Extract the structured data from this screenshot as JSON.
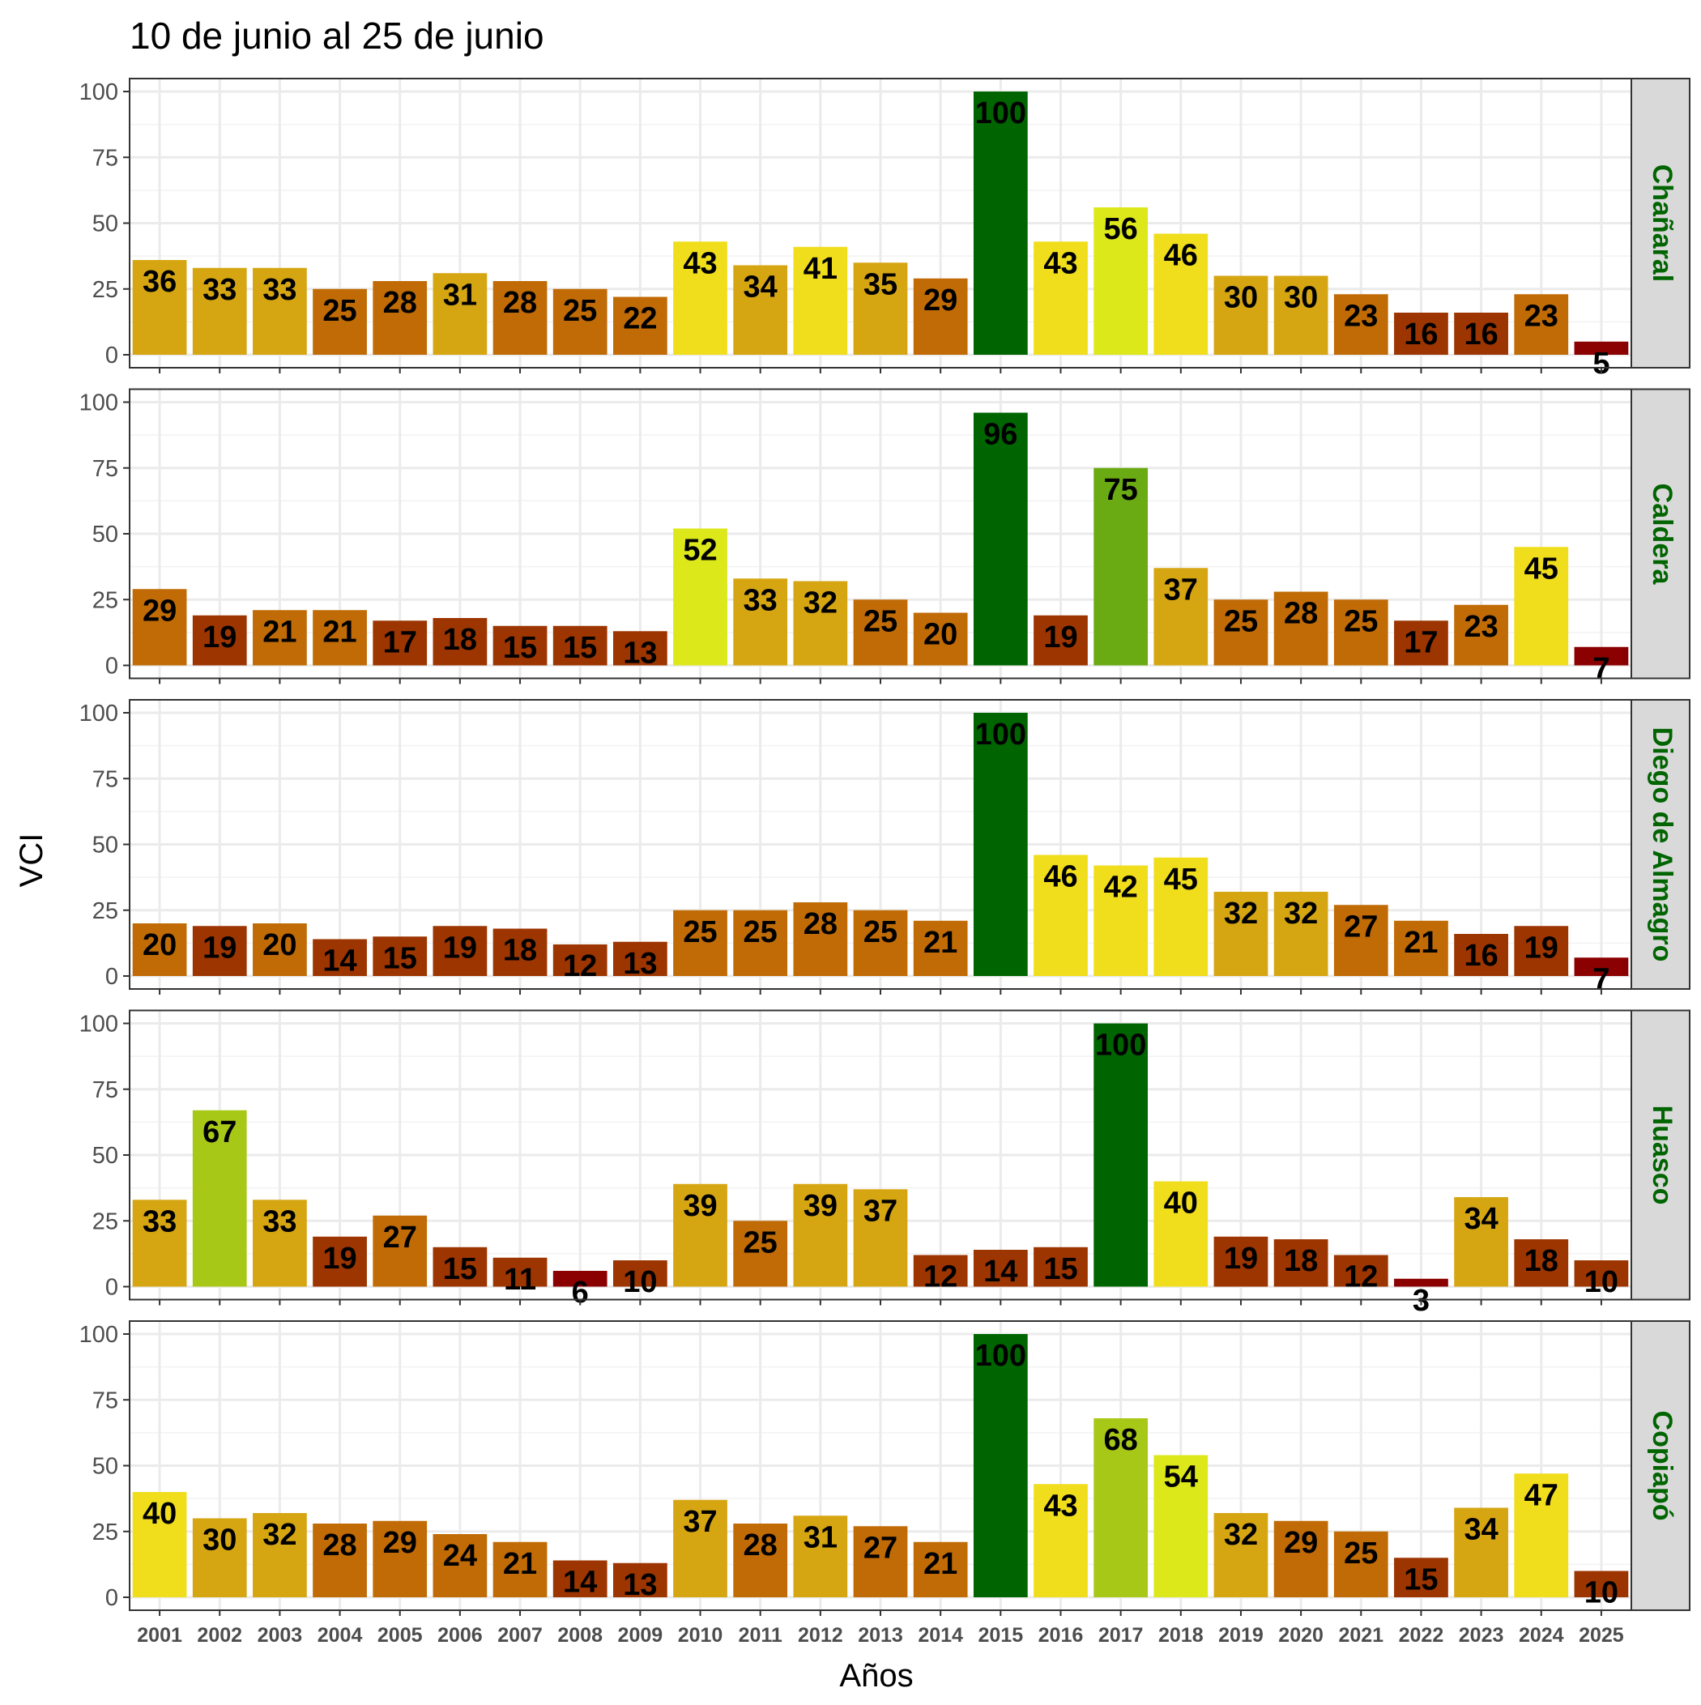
{
  "chart_data": {
    "type": "bar",
    "title": "10 de junio al 25 de junio",
    "xlabel": "Años",
    "ylabel": "VCI",
    "ylim": [
      0,
      100
    ],
    "yticks": [
      0,
      25,
      50,
      75,
      100
    ],
    "grid": true,
    "legend": "none",
    "categories": [
      "2001",
      "2002",
      "2003",
      "2004",
      "2005",
      "2006",
      "2007",
      "2008",
      "2009",
      "2010",
      "2011",
      "2012",
      "2013",
      "2014",
      "2015",
      "2016",
      "2017",
      "2018",
      "2019",
      "2020",
      "2021",
      "2022",
      "2023",
      "2024",
      "2025"
    ],
    "colors": {
      "lt10": "#8b0000",
      "10_20": "#9c3500",
      "20_30": "#c06b05",
      "30_40": "#d6a612",
      "40_50": "#f0de1c",
      "50_60": "#dde81a",
      "60_70": "#a8c818",
      "70_80": "#6aaa12",
      "80_100": "#006400",
      "strip_fill": "#d9d9d9",
      "strip_text": "#006400"
    },
    "series": [
      {
        "name": "Chañaral",
        "values": [
          36,
          33,
          33,
          25,
          28,
          31,
          28,
          25,
          22,
          43,
          34,
          41,
          35,
          29,
          100,
          43,
          56,
          46,
          30,
          30,
          23,
          16,
          16,
          23,
          5
        ]
      },
      {
        "name": "Caldera",
        "values": [
          29,
          19,
          21,
          21,
          17,
          18,
          15,
          15,
          13,
          52,
          33,
          32,
          25,
          20,
          96,
          19,
          75,
          37,
          25,
          28,
          25,
          17,
          23,
          45,
          7
        ]
      },
      {
        "name": "Diego de Almagro",
        "values": [
          20,
          19,
          20,
          14,
          15,
          19,
          18,
          12,
          13,
          25,
          25,
          28,
          25,
          21,
          100,
          46,
          42,
          45,
          32,
          32,
          27,
          21,
          16,
          19,
          7
        ]
      },
      {
        "name": "Huasco",
        "values": [
          33,
          67,
          33,
          19,
          27,
          15,
          11,
          6,
          10,
          39,
          25,
          39,
          37,
          12,
          14,
          15,
          100,
          40,
          19,
          18,
          12,
          3,
          34,
          18,
          10
        ]
      },
      {
        "name": "Copiapó",
        "values": [
          40,
          30,
          32,
          28,
          29,
          24,
          21,
          14,
          13,
          37,
          28,
          31,
          27,
          21,
          100,
          43,
          68,
          54,
          32,
          29,
          25,
          15,
          34,
          47,
          10
        ]
      }
    ]
  }
}
